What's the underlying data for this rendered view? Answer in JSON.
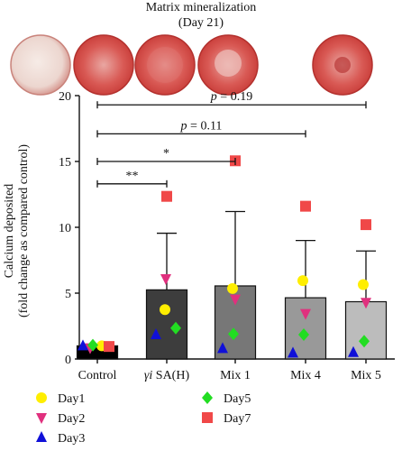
{
  "header": {
    "title_line1": "Matrix mineralization",
    "title_line2": "(Day 21)"
  },
  "chart_data": {
    "type": "bar",
    "categories": [
      "Control",
      "γi SA(H)",
      "Mix 1",
      "Mix 4",
      "Mix 5"
    ],
    "category_prefix": [
      "",
      "γi",
      "",
      "",
      ""
    ],
    "category_rest": [
      "Control",
      " SA(H)",
      "Mix 1",
      "Mix 4",
      "Mix 5"
    ],
    "ylabel_line1": "Calcium deposited",
    "ylabel_line2": "(fold change as compared control)",
    "ylim": [
      0,
      20
    ],
    "yticks": [
      0,
      5,
      10,
      15,
      20
    ],
    "bar_colors": [
      "#000000",
      "#3d3d3d",
      "#777777",
      "#999999",
      "#bcbcbc"
    ],
    "means": [
      1.0,
      5.25,
      5.55,
      4.65,
      4.35
    ],
    "error_upper": [
      1.0,
      9.55,
      11.2,
      9.0,
      8.2
    ],
    "series": [
      {
        "name": "Day1",
        "marker": "circle",
        "color": "#ffee00",
        "values": [
          1.0,
          3.75,
          5.35,
          5.95,
          5.65
        ]
      },
      {
        "name": "Day2",
        "marker": "triangle-down",
        "color": "#e0307e",
        "values": [
          0.85,
          6.1,
          4.55,
          3.45,
          4.3
        ]
      },
      {
        "name": "Day3",
        "marker": "triangle-up",
        "color": "#1010d8",
        "values": [
          1.0,
          1.85,
          0.8,
          0.45,
          0.5
        ]
      },
      {
        "name": "Day5",
        "marker": "diamond",
        "color": "#22dd22",
        "values": [
          1.05,
          2.35,
          1.9,
          1.85,
          1.35
        ]
      },
      {
        "name": "Day7",
        "marker": "square",
        "color": "#f04848",
        "values": [
          0.95,
          12.35,
          15.05,
          11.6,
          10.2
        ]
      }
    ],
    "significance": [
      {
        "label": "p = 0.19",
        "to": "Mix 5"
      },
      {
        "label": "p = 0.11",
        "to": "Mix 4"
      },
      {
        "label": "*",
        "to": "Mix 1"
      },
      {
        "label": "**",
        "to": "γi SA(H)"
      }
    ],
    "significance_levels": [
      19.3,
      17.1,
      15.0,
      13.3
    ],
    "legend_placement": "bottom",
    "grid": false
  }
}
